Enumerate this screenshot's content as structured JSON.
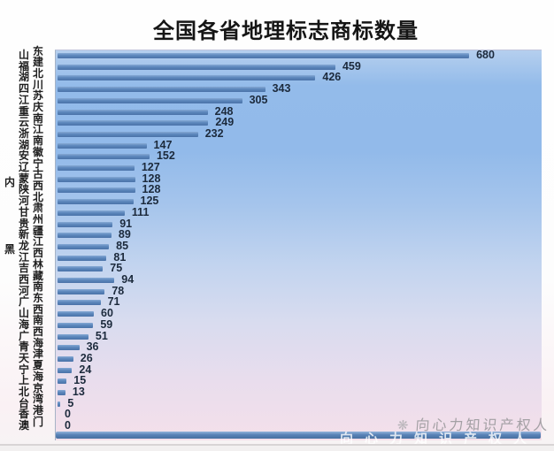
{
  "title": "全国各省地理标志商标数量",
  "chart_data": {
    "type": "bar",
    "orientation": "horizontal",
    "title": "全国各省地理标志商标数量",
    "categories": [
      "山东",
      "福建",
      "湖北",
      "四川",
      "江苏",
      "重庆",
      "云南",
      "浙江",
      "湖南",
      "安徽",
      "辽宁",
      "内蒙古",
      "陕西",
      "河北",
      "甘肃",
      "贵州",
      "新疆",
      "黑龙江",
      "江西",
      "吉林",
      "西藏",
      "河南",
      "广东",
      "山西",
      "海南",
      "广西",
      "青海",
      "天津",
      "宁夏",
      "上海",
      "北京",
      "台湾",
      "香港",
      "澳门"
    ],
    "values": [
      680,
      459,
      426,
      343,
      305,
      248,
      249,
      232,
      147,
      152,
      127,
      128,
      128,
      125,
      111,
      91,
      89,
      85,
      81,
      75,
      94,
      78,
      71,
      60,
      59,
      51,
      36,
      26,
      24,
      15,
      13,
      5,
      0,
      0
    ],
    "value_labels_shown": true,
    "xlim": [
      0,
      800
    ],
    "grid": false,
    "legend": "none",
    "bar_color": "#5d87bc",
    "value_label_color": "#1c2a3c",
    "plot_background_gradient": [
      "#93bbea",
      "#c2d4ef",
      "#f4e0ea"
    ]
  },
  "watermarks": {
    "icon": "❋",
    "gray_text": "向心力知识产权人",
    "overlay_text": "向心力知识产权人"
  },
  "colors": {
    "title": "#151515",
    "baseline_bar": "#5a83b8",
    "watermark_gray": "#a3a0a4",
    "separator_line": "#d8d4d5"
  }
}
